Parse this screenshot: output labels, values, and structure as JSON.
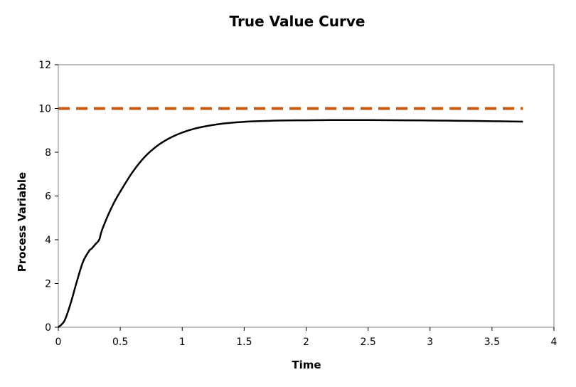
{
  "chart_data": {
    "type": "line",
    "title": "True Value Curve",
    "xlabel": "Time",
    "ylabel": "Process Variable",
    "xlim": [
      0,
      4
    ],
    "ylim": [
      0,
      12
    ],
    "x_ticks": [
      "0",
      "0.5",
      "1",
      "1.5",
      "2",
      "2.5",
      "3",
      "3.5",
      "4"
    ],
    "y_ticks": [
      "0",
      "2",
      "4",
      "6",
      "8",
      "10",
      "12"
    ],
    "grid": false,
    "legend": "none",
    "series": [
      {
        "style": "solid",
        "color": "#000000",
        "x": [
          0,
          0.05,
          0.1,
          0.15,
          0.2,
          0.25,
          0.27,
          0.3,
          0.33,
          0.35,
          0.4,
          0.45,
          0.5,
          0.6,
          0.7,
          0.8,
          0.9,
          1.0,
          1.1,
          1.2,
          1.3,
          1.4,
          1.5,
          1.6,
          1.8,
          2.0,
          2.2,
          2.5,
          2.8,
          3.0,
          3.2,
          3.5,
          3.75
        ],
        "y": [
          0,
          0.3,
          1.1,
          2.1,
          3.0,
          3.5,
          3.6,
          3.8,
          4.0,
          4.4,
          5.1,
          5.7,
          6.2,
          7.1,
          7.8,
          8.3,
          8.65,
          8.9,
          9.08,
          9.2,
          9.29,
          9.35,
          9.39,
          9.42,
          9.45,
          9.46,
          9.47,
          9.47,
          9.46,
          9.45,
          9.44,
          9.42,
          9.4
        ]
      },
      {
        "style": "dashed",
        "color": "#c55a11",
        "x": [
          0,
          3.75
        ],
        "y": [
          10,
          10
        ]
      }
    ]
  }
}
